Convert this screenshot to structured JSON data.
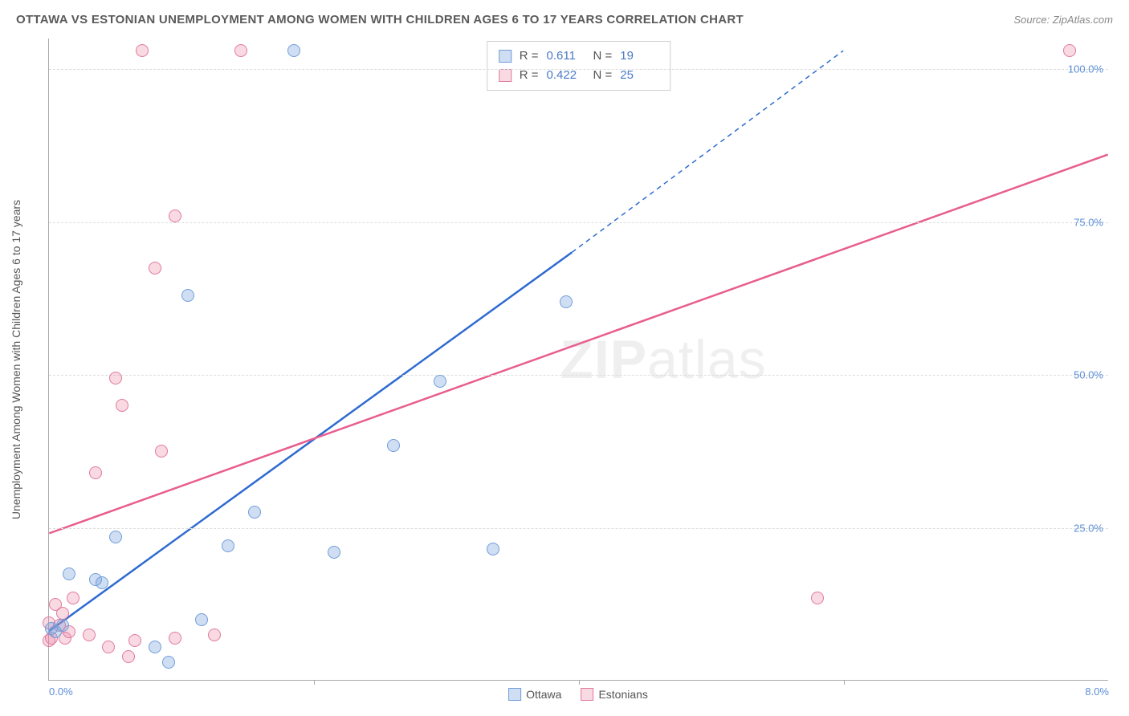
{
  "title": "OTTAWA VS ESTONIAN UNEMPLOYMENT AMONG WOMEN WITH CHILDREN AGES 6 TO 17 YEARS CORRELATION CHART",
  "source_prefix": "Source: ",
  "source_name": "ZipAtlas.com",
  "y_axis_label": "Unemployment Among Women with Children Ages 6 to 17 years",
  "watermark_a": "ZIP",
  "watermark_b": "atlas",
  "chart": {
    "type": "scatter",
    "xlim": [
      0,
      8
    ],
    "ylim": [
      0,
      105
    ],
    "x_ticks": [
      0,
      2,
      4,
      6,
      8
    ],
    "x_tick_labels_shown": {
      "0": "0.0%",
      "8": "8.0%"
    },
    "y_ticks": [
      25,
      50,
      75,
      100
    ],
    "y_tick_labels": [
      "25.0%",
      "50.0%",
      "75.0%",
      "100.0%"
    ],
    "background_color": "#ffffff",
    "grid_color": "#dddddd",
    "axis_color": "#aaaaaa",
    "tick_label_color": "#5b8dd6",
    "marker_size": 16,
    "marker_border_width": 1.5,
    "line_width": 2.5,
    "series": [
      {
        "name": "Ottawa",
        "color_fill": "rgba(120,160,220,0.35)",
        "color_stroke": "#6f9ed9",
        "line_color": "#2e6bd0",
        "R": "0.611",
        "N": "19",
        "regression": {
          "x1": 0,
          "y1": 8,
          "x2_solid": 3.95,
          "y2_solid": 70,
          "x2_dash": 6.0,
          "y2_dash": 103
        },
        "points": [
          [
            0.02,
            8.5
          ],
          [
            0.05,
            8.0
          ],
          [
            0.1,
            9.0
          ],
          [
            0.15,
            17.5
          ],
          [
            0.35,
            16.5
          ],
          [
            0.4,
            16.0
          ],
          [
            0.5,
            23.5
          ],
          [
            0.8,
            5.5
          ],
          [
            0.9,
            3.0
          ],
          [
            1.05,
            63.0
          ],
          [
            1.15,
            10.0
          ],
          [
            1.35,
            22.0
          ],
          [
            1.55,
            27.5
          ],
          [
            1.85,
            103.0
          ],
          [
            2.15,
            21.0
          ],
          [
            2.6,
            38.5
          ],
          [
            2.95,
            49.0
          ],
          [
            3.35,
            21.5
          ],
          [
            3.9,
            62.0
          ]
        ]
      },
      {
        "name": "Estonians",
        "color_fill": "rgba(235,130,160,0.30)",
        "color_stroke": "#e07aa0",
        "line_color": "#e85d8e",
        "R": "0.422",
        "N": "25",
        "regression": {
          "x1": 0,
          "y1": 24,
          "x2_solid": 8.0,
          "y2_solid": 86,
          "x2_dash": 8.0,
          "y2_dash": 86
        },
        "points": [
          [
            0.02,
            7.0
          ],
          [
            0.05,
            12.5
          ],
          [
            0.08,
            9.0
          ],
          [
            0.1,
            11.0
          ],
          [
            0.12,
            7.0
          ],
          [
            0.18,
            13.5
          ],
          [
            0.3,
            7.5
          ],
          [
            0.35,
            34.0
          ],
          [
            0.45,
            5.5
          ],
          [
            0.5,
            49.5
          ],
          [
            0.55,
            45.0
          ],
          [
            0.6,
            4.0
          ],
          [
            0.65,
            6.5
          ],
          [
            0.7,
            103.0
          ],
          [
            0.8,
            67.5
          ],
          [
            0.85,
            37.5
          ],
          [
            0.95,
            7.0
          ],
          [
            0.95,
            76.0
          ],
          [
            1.25,
            7.5
          ],
          [
            1.45,
            103.0
          ],
          [
            5.8,
            13.5
          ],
          [
            7.7,
            103.0
          ],
          [
            0.0,
            9.5
          ],
          [
            0.0,
            6.5
          ],
          [
            0.15,
            8.0
          ]
        ]
      }
    ]
  },
  "stats_box": {
    "R_label": "R  =",
    "N_label": "N  ="
  },
  "legend": [
    "Ottawa",
    "Estonians"
  ]
}
